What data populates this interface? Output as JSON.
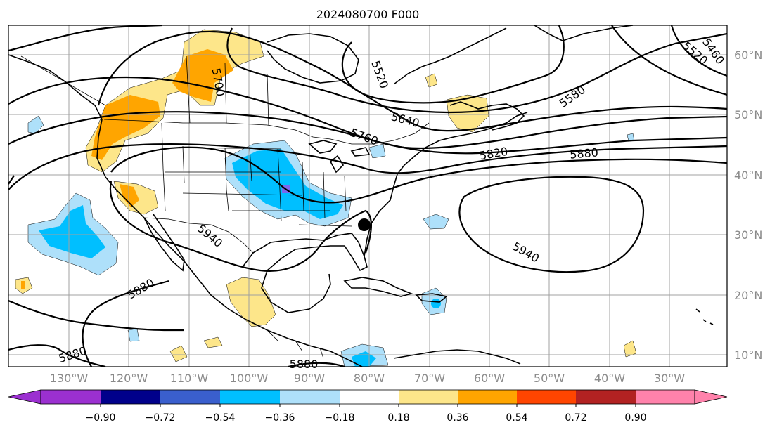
{
  "title": "2024080700 F000",
  "lon_ticks": [
    "130°W",
    "120°W",
    "110°W",
    "100°W",
    "90°W",
    "80°W",
    "70°W",
    "60°W",
    "50°W",
    "40°W",
    "30°W"
  ],
  "lat_ticks": [
    "60°N",
    "50°N",
    "40°N",
    "30°N",
    "20°N",
    "10°N"
  ],
  "contour_labels": [
    "5880",
    "5940",
    "5880",
    "5760",
    "5640",
    "5520",
    "5700",
    "5820",
    "5880",
    "5580",
    "5520",
    "5460",
    "5940",
    "5880"
  ],
  "colorbar": {
    "tick_labels": [
      "−0.90",
      "−0.72",
      "−0.54",
      "−0.36",
      "−0.18",
      "0.18",
      "0.36",
      "0.54",
      "0.72",
      "0.90"
    ],
    "colors": [
      "#9b30d0",
      "#00008b",
      "#3a5fcd",
      "#00bfff",
      "#aee0fa",
      "#ffffff",
      "#fde68a",
      "#ffa500",
      "#ff4500",
      "#b22222",
      "#ff82ab"
    ]
  },
  "colors": {
    "orange": "#ffa500",
    "yellow": "#fde68a",
    "blue": "#00bfff",
    "lightblue": "#aee0fa",
    "purple": "#7b68ee"
  }
}
